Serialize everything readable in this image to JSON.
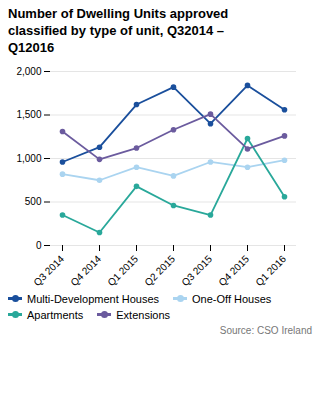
{
  "chart_data": {
    "type": "line",
    "title": "Number of Dwelling Units approved\nclassified by type of unit, Q32014 –\nQ12016",
    "categories": [
      "Q3 2014",
      "Q4 2014",
      "Q1 2015",
      "Q2 2015",
      "Q3 2015",
      "Q4 2015",
      "Q1 2016"
    ],
    "series": [
      {
        "name": "Multi-Development Houses",
        "color": "#1a4f9c",
        "marker": "circle",
        "values": [
          960,
          1130,
          1620,
          1820,
          1400,
          1840,
          1560
        ]
      },
      {
        "name": "One-Off Houses",
        "color": "#aad4f0",
        "marker": "circle",
        "values": [
          820,
          750,
          900,
          800,
          960,
          900,
          980
        ]
      },
      {
        "name": "Apartments",
        "color": "#29a89a",
        "marker": "circle",
        "values": [
          350,
          150,
          680,
          460,
          350,
          1230,
          560
        ]
      },
      {
        "name": "Extensions",
        "color": "#6b5b9e",
        "marker": "circle",
        "values": [
          1310,
          990,
          1120,
          1330,
          1510,
          1110,
          1260
        ]
      }
    ],
    "ylim": [
      0,
      2000
    ],
    "yticks": [
      0,
      500,
      1000,
      1500,
      2000
    ],
    "grid": true,
    "legend": "bottom",
    "source": "Source: CSO Ireland"
  }
}
